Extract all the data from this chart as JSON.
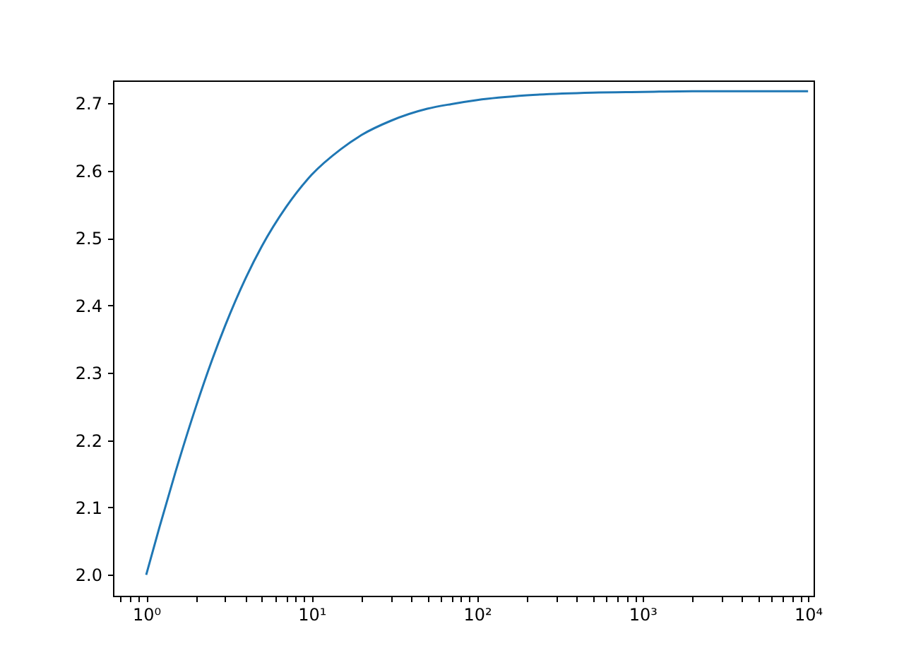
{
  "chart_data": {
    "type": "line",
    "x": [
      1,
      1.2,
      1.5,
      2,
      2.5,
      3,
      4,
      5,
      7,
      10,
      15,
      20,
      30,
      50,
      70,
      100,
      200,
      500,
      1000,
      2000,
      5000,
      10000
    ],
    "series": [
      {
        "color": "#1f77b4",
        "values": [
          2.0,
          2.07,
          2.152,
          2.25,
          2.319,
          2.37,
          2.441,
          2.488,
          2.546,
          2.594,
          2.632,
          2.653,
          2.674,
          2.692,
          2.699,
          2.705,
          2.712,
          2.716,
          2.717,
          2.718,
          2.718,
          2.718
        ]
      }
    ],
    "log": "x",
    "xlim": [
      0.63,
      10800
    ],
    "ylim": [
      1.969,
      2.734
    ],
    "xticks": [
      {
        "value": 1,
        "label": "10⁰"
      },
      {
        "value": 10,
        "label": "10¹"
      },
      {
        "value": 100,
        "label": "10²"
      },
      {
        "value": 1000,
        "label": "10³"
      },
      {
        "value": 10000,
        "label": "10⁴"
      },
      {
        "value": 0.7,
        "label": null
      },
      {
        "value": 0.8,
        "label": null
      },
      {
        "value": 0.9,
        "label": null
      },
      {
        "value": 2,
        "label": null
      },
      {
        "value": 3,
        "label": null
      },
      {
        "value": 4,
        "label": null
      },
      {
        "value": 5,
        "label": null
      },
      {
        "value": 6,
        "label": null
      },
      {
        "value": 7,
        "label": null
      },
      {
        "value": 8,
        "label": null
      },
      {
        "value": 9,
        "label": null
      },
      {
        "value": 20,
        "label": null
      },
      {
        "value": 30,
        "label": null
      },
      {
        "value": 40,
        "label": null
      },
      {
        "value": 50,
        "label": null
      },
      {
        "value": 60,
        "label": null
      },
      {
        "value": 70,
        "label": null
      },
      {
        "value": 80,
        "label": null
      },
      {
        "value": 90,
        "label": null
      },
      {
        "value": 200,
        "label": null
      },
      {
        "value": 300,
        "label": null
      },
      {
        "value": 400,
        "label": null
      },
      {
        "value": 500,
        "label": null
      },
      {
        "value": 600,
        "label": null
      },
      {
        "value": 700,
        "label": null
      },
      {
        "value": 800,
        "label": null
      },
      {
        "value": 900,
        "label": null
      },
      {
        "value": 2000,
        "label": null
      },
      {
        "value": 3000,
        "label": null
      },
      {
        "value": 4000,
        "label": null
      },
      {
        "value": 5000,
        "label": null
      },
      {
        "value": 6000,
        "label": null
      },
      {
        "value": 7000,
        "label": null
      },
      {
        "value": 8000,
        "label": null
      },
      {
        "value": 9000,
        "label": null
      }
    ],
    "yticks": [
      {
        "value": 2.0,
        "label": "2.0"
      },
      {
        "value": 2.1,
        "label": "2.1"
      },
      {
        "value": 2.2,
        "label": "2.2"
      },
      {
        "value": 2.3,
        "label": "2.3"
      },
      {
        "value": 2.4,
        "label": "2.4"
      },
      {
        "value": 2.5,
        "label": "2.5"
      },
      {
        "value": 2.6,
        "label": "2.6"
      },
      {
        "value": 2.7,
        "label": "2.7"
      }
    ],
    "grid": false,
    "marker": "none",
    "line_style": "solid"
  }
}
